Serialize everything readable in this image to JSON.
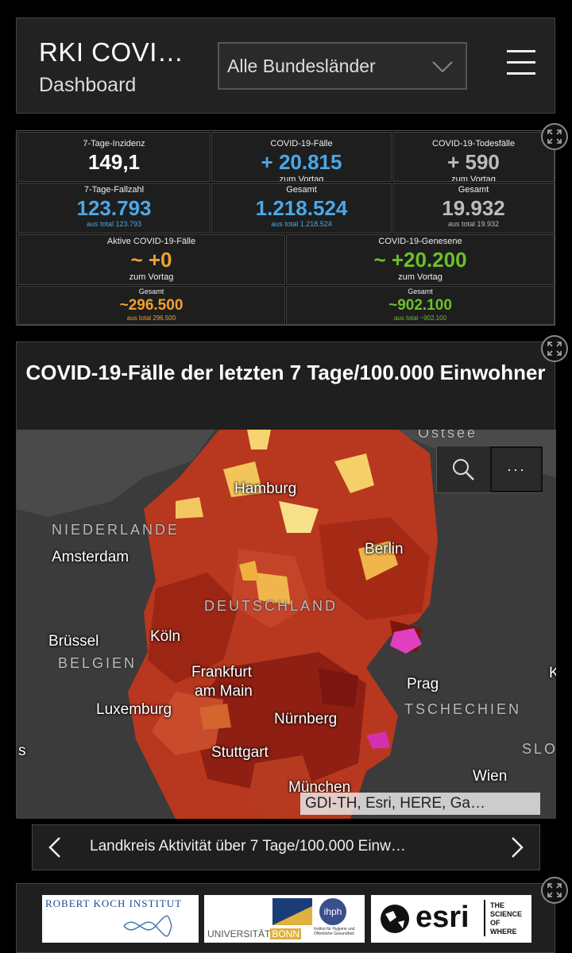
{
  "header": {
    "title": "RKI COVI…",
    "subtitle": "Dashboard",
    "region_select": "Alle Bundesländer",
    "menu_icon": "hamburger-menu-icon"
  },
  "stats": {
    "inzidenz": {
      "label": "7-Tage-Inzidenz",
      "value": "149,1"
    },
    "faelle": {
      "label": "COVID-19-Fälle",
      "value": "+ 20.815",
      "sub": "zum Vortag"
    },
    "todesfaelle": {
      "label": "COVID-19-Todesfälle",
      "value": "+ 590",
      "sub": "zum Vortag"
    },
    "fallzahl": {
      "label": "7-Tage-Fallzahl",
      "value": "123.793",
      "sub": "aus total 123.793"
    },
    "faelle_gesamt": {
      "label": "Gesamt",
      "value": "1.218.524",
      "sub": "aus total 1.218.524"
    },
    "tode_gesamt": {
      "label": "Gesamt",
      "value": "19.932",
      "sub": "aus total 19.932"
    },
    "aktive": {
      "label": "Aktive COVID-19-Fälle",
      "value": "~ +0",
      "sub": "zum Vortag"
    },
    "genesene": {
      "label": "COVID-19-Genesene",
      "value": "~ +20.200",
      "sub": "zum Vortag"
    },
    "aktive_gesamt": {
      "label": "Gesamt",
      "value": "~296.500",
      "sub": "aus total 296.500"
    },
    "genesene_gesamt": {
      "label": "Gesamt",
      "value": "~902.100",
      "sub": "aus total ~902.100"
    }
  },
  "map": {
    "title": "COVID-19-Fälle der letzten 7 Tage/100.000 Einwohner",
    "attribution": "GDI-TH, Esri, HERE, Ga…",
    "more_label": "···",
    "labels": {
      "ostsee": "Ostsee",
      "hamburg": "Hamburg",
      "niederlande": "NIEDERLANDE",
      "amsterdam": "Amsterdam",
      "berlin": "Berlin",
      "deutschland": "DEUTSCHLAND",
      "bruessel": "Brüssel",
      "belgien": "BELGIEN",
      "koeln": "Köln",
      "frankfurt1": "Frankfurt",
      "frankfurt2": "am Main",
      "prag": "Prag",
      "tschechien": "TSCHECHIEN",
      "luxemburg": "Luxemburg",
      "nuernberg": "Nürnberg",
      "stuttgart": "Stuttgart",
      "muenchen": "München",
      "wien": "Wien",
      "s_edge": "s",
      "slo_edge": "SLO",
      "k_edge": "K"
    }
  },
  "nav": {
    "label": "Landkreis Aktivität über 7 Tage/100.000 Einw…"
  },
  "logos": {
    "rki": "ROBERT KOCH INSTITUT",
    "bonn_a": "UNIVERSITÄT",
    "bonn_b": "BONN",
    "ihph": "ihph",
    "ihph_sub": "Institut für Hygiene und Öffentliche Gesundheit",
    "esri": "esri",
    "esri_tag": "THE SCIENCE OF WHERE"
  },
  "colors": {
    "blue": "#4aa8e6",
    "orange": "#f0a030",
    "green": "#6cc02a",
    "grey": "#bbbbbb"
  }
}
